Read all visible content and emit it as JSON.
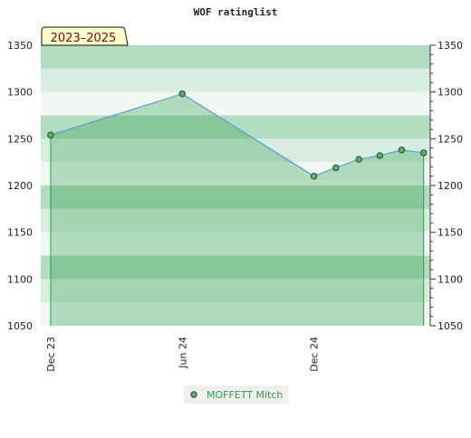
{
  "chart_data": {
    "type": "line",
    "title": "WOF ratinglist",
    "badge": "2023–2025",
    "x_tick_labels": [
      "Dec 23",
      "Jun 24",
      "Dec 24"
    ],
    "x_ticks": [
      0,
      6,
      12
    ],
    "xlim": [
      -0.45,
      17.3
    ],
    "ylim": [
      1050,
      1350
    ],
    "y_ticks": [
      1050,
      1100,
      1150,
      1200,
      1250,
      1300,
      1350
    ],
    "y_tick_labels": [
      "1050",
      "1100",
      "1150",
      "1200",
      "1250",
      "1300",
      "1350"
    ],
    "grid": true,
    "legend_position": "bottom-center",
    "series": [
      {
        "name": "MOFFETT Mitch",
        "x": [
          0,
          6,
          12,
          13,
          14.05,
          15,
          16,
          17
        ],
        "y": [
          1254,
          1298,
          1210,
          1219,
          1228,
          1232,
          1238,
          1235
        ]
      }
    ],
    "colors": {
      "line": "#5b9bd5",
      "marker_fill": "#5cae6a",
      "marker_stroke": "#1e4d2b",
      "area_fill": "#2e9e4a",
      "edge_lines": "#2e9e4a",
      "band_dark": "#b2dcbf",
      "band_light": "#d8eddf",
      "band_lightest": "#f1f8f3",
      "badge_fill": "#ffffcc"
    }
  }
}
